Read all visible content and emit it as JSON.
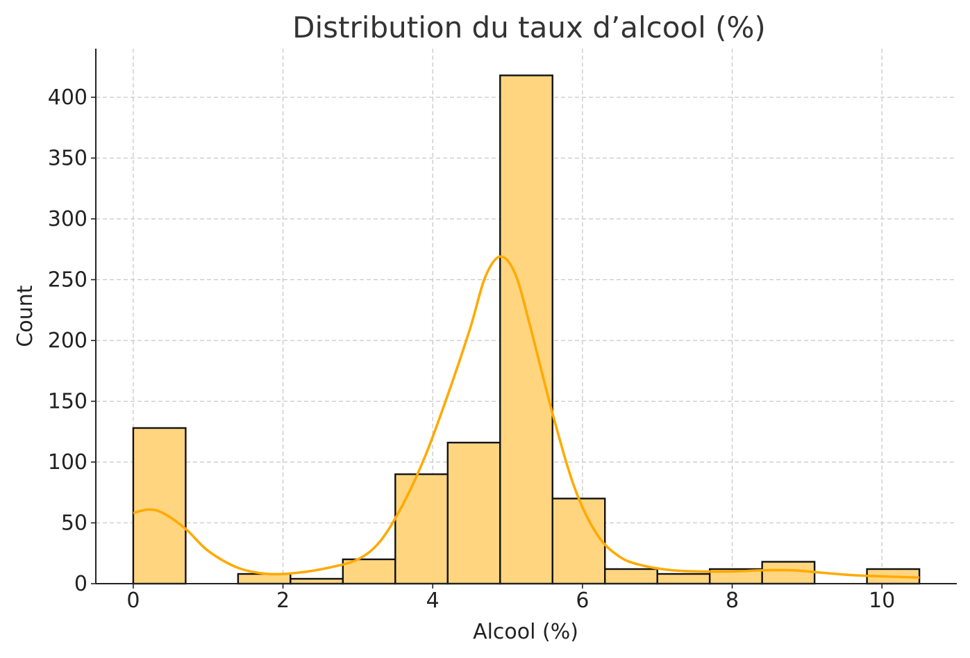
{
  "chart_data": {
    "type": "bar",
    "subtype": "histogram-with-kde",
    "title": "Distribution du taux d’alcool (%)",
    "xlabel": "Alcool (%)",
    "ylabel": "Count",
    "xlim": [
      -0.5,
      11.0
    ],
    "ylim": [
      0,
      440
    ],
    "xticks": [
      0,
      2,
      4,
      6,
      8,
      10
    ],
    "yticks": [
      0,
      50,
      100,
      150,
      200,
      250,
      300,
      350,
      400
    ],
    "grid": true,
    "bar_color": "#FFD580",
    "edge_color": "#111111",
    "kde_color": "#FFAA00",
    "bins": [
      {
        "x0": 0.0,
        "x1": 0.7,
        "count": 128
      },
      {
        "x0": 0.7,
        "x1": 1.4,
        "count": 0
      },
      {
        "x0": 1.4,
        "x1": 2.1,
        "count": 8
      },
      {
        "x0": 2.1,
        "x1": 2.8,
        "count": 4
      },
      {
        "x0": 2.8,
        "x1": 3.5,
        "count": 20
      },
      {
        "x0": 3.5,
        "x1": 4.2,
        "count": 90
      },
      {
        "x0": 4.2,
        "x1": 4.9,
        "count": 116
      },
      {
        "x0": 4.9,
        "x1": 5.6,
        "count": 418
      },
      {
        "x0": 5.6,
        "x1": 6.3,
        "count": 70
      },
      {
        "x0": 6.3,
        "x1": 7.0,
        "count": 12
      },
      {
        "x0": 7.0,
        "x1": 7.7,
        "count": 8
      },
      {
        "x0": 7.7,
        "x1": 8.4,
        "count": 12
      },
      {
        "x0": 8.4,
        "x1": 9.1,
        "count": 18
      },
      {
        "x0": 9.1,
        "x1": 9.8,
        "count": 0
      },
      {
        "x0": 9.8,
        "x1": 10.5,
        "count": 12
      }
    ],
    "kde": {
      "x": [
        0.0,
        0.2,
        0.4,
        0.7,
        1.0,
        1.4,
        1.8,
        2.2,
        2.6,
        3.0,
        3.3,
        3.6,
        3.9,
        4.2,
        4.5,
        4.7,
        4.9,
        5.1,
        5.3,
        5.6,
        5.9,
        6.2,
        6.5,
        6.8,
        7.2,
        7.6,
        8.0,
        8.4,
        8.8,
        9.2,
        9.6,
        10.0,
        10.5
      ],
      "y": [
        58,
        61,
        58,
        45,
        27,
        13,
        8,
        9,
        13,
        20,
        35,
        65,
        105,
        155,
        210,
        252,
        269,
        255,
        212,
        140,
        78,
        40,
        22,
        15,
        11,
        10,
        10,
        11,
        11,
        9,
        7,
        6,
        5
      ]
    }
  }
}
